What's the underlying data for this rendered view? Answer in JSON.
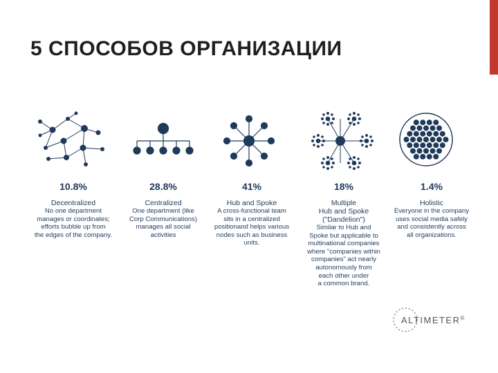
{
  "slide": {
    "title": "5 СПОСОБОВ ОРГАНИЗАЦИИ",
    "accent_color": "#c0392b",
    "node_color": "#1f3a5a"
  },
  "models": [
    {
      "percent": "10.8%",
      "name": "Decentralized",
      "description": "No one department\nmanages or coordinates;\nefforts bubble up from\nthe edges of the company."
    },
    {
      "percent": "28.8%",
      "name": "Centralized",
      "description": "One department (like\nCorp Communications)\nmanages all social\nactivities"
    },
    {
      "percent": "41%",
      "name": "Hub and Spoke",
      "description": "A cross-functional team\nsits in a centralized\npositionand helps various\nnodes such as business\nunits."
    },
    {
      "percent": "18%",
      "name": "Multiple\nHub and Spoke\n(\"Dandelion\")",
      "description": "Similar to Hub and\nSpoke but applicable to\nmultinational companies\nwhere \"companies within\ncompanies\" act nearly\nautonomously from\neach other under\na common brand."
    },
    {
      "percent": "1.4%",
      "name": "Holistic",
      "description": "Everyone in the company\nuses social media safely\nand consistently across\nall organizations."
    }
  ],
  "logo": {
    "text": "ALTIMETER",
    "mark": "®"
  }
}
